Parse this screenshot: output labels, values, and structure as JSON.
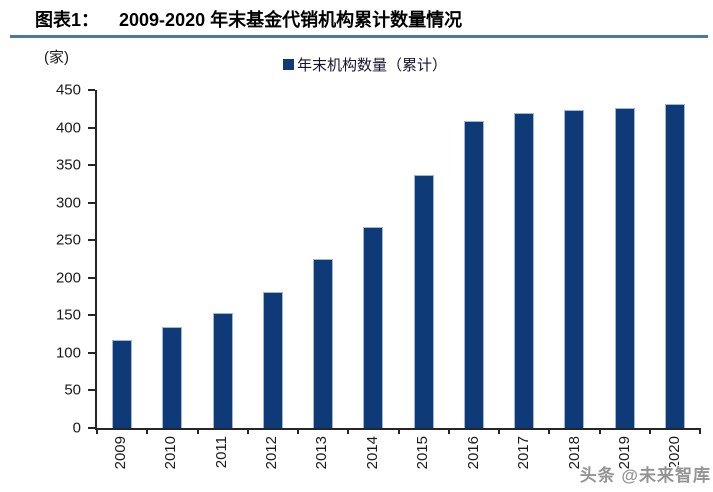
{
  "header": {
    "label": "图表1：",
    "title": "2009-2020 年末基金代销机构累计数量情况"
  },
  "chart_data": {
    "type": "bar",
    "title": "2009-2020 年末基金代销机构累计数量情况",
    "unit_label": "(家)",
    "legend_entries": [
      "年末机构数量（累计）"
    ],
    "legend_position": "top",
    "categories": [
      "2009",
      "2010",
      "2011",
      "2012",
      "2013",
      "2014",
      "2015",
      "2016",
      "2017",
      "2018",
      "2019",
      "2020"
    ],
    "values": [
      117,
      135,
      153,
      181,
      225,
      267,
      337,
      409,
      419,
      423,
      426,
      431
    ],
    "xlabel": "",
    "ylabel": "(家)",
    "ylim": [
      0,
      450
    ],
    "ytick_step": 50,
    "yticks": [
      0,
      50,
      100,
      150,
      200,
      250,
      300,
      350,
      400,
      450
    ],
    "grid": false,
    "bar_color": "#0e3a78",
    "bar_border_color": "#9fb6d9"
  },
  "colors": {
    "accent_rule": "#4a77a8",
    "bar": "#0e3a78",
    "axis": "#262626"
  },
  "watermark": {
    "text": "头条 @未来智库"
  }
}
